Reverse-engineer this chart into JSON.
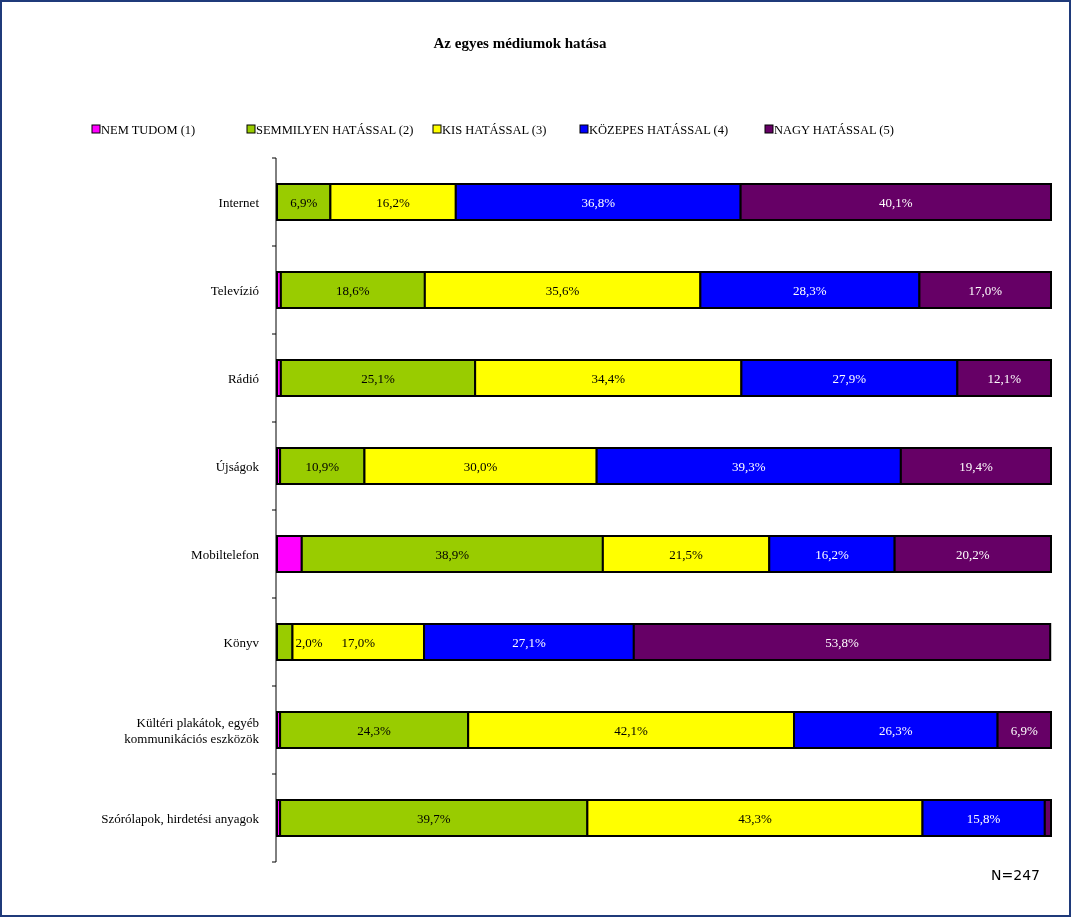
{
  "chart_data": {
    "type": "bar",
    "orientation": "horizontal",
    "stacked": true,
    "title": "Az egyes médiumok hatása",
    "categories": [
      "Internet",
      "Televízió",
      "Rádió",
      "Újságok",
      "Mobiltelefon",
      "Könyv",
      "Kültéri plakátok, egyéb kommunikációs eszközök",
      "Szórólapok, hirdetési anyagok"
    ],
    "series": [
      {
        "name": "NEM TUDOM (1)",
        "color": "#ff00ff",
        "values": [
          0,
          0.5,
          0.5,
          0.4,
          3.2,
          0,
          0.4,
          0.4
        ],
        "value_labels": [
          null,
          null,
          null,
          null,
          null,
          null,
          null,
          null
        ]
      },
      {
        "name": "SEMMILYEN HATÁSSAL (2)",
        "color": "#99cc00",
        "values": [
          6.9,
          18.6,
          25.1,
          10.9,
          38.9,
          2.0,
          24.3,
          39.7
        ],
        "value_labels": [
          "6,9%",
          "18,6%",
          "25,1%",
          "10,9%",
          "38,9%",
          "2,0%",
          "24,3%",
          "39,7%"
        ]
      },
      {
        "name": "KIS HATÁSSAL (3)",
        "color": "#ffff00",
        "values": [
          16.2,
          35.6,
          34.4,
          30.0,
          21.5,
          17.0,
          42.1,
          43.3
        ],
        "value_labels": [
          "16,2%",
          "35,6%",
          "34,4%",
          "30,0%",
          "21,5%",
          "17,0%",
          "42,1%",
          "43,3%"
        ]
      },
      {
        "name": "KÖZEPES HATÁSSAL (4)",
        "color": "#0000ff",
        "values": [
          36.8,
          28.3,
          27.9,
          39.3,
          16.2,
          27.1,
          26.3,
          15.8
        ],
        "value_labels": [
          "36,8%",
          "28,3%",
          "27,9%",
          "39,3%",
          "16,2%",
          "27,1%",
          "26,3%",
          "15,8%"
        ]
      },
      {
        "name": "NAGY HATÁSSAL (5)",
        "color": "#660066",
        "values": [
          40.1,
          17.0,
          12.1,
          19.4,
          20.2,
          53.8,
          6.9,
          0.8
        ],
        "value_labels": [
          "40,1%",
          "17,0%",
          "12,1%",
          "19,4%",
          "20,2%",
          "53,8%",
          "6,9%",
          null
        ]
      }
    ],
    "xlim": [
      0,
      100
    ],
    "tick_labels": "y",
    "legend": "top",
    "annotations": [
      "N=247"
    ]
  }
}
